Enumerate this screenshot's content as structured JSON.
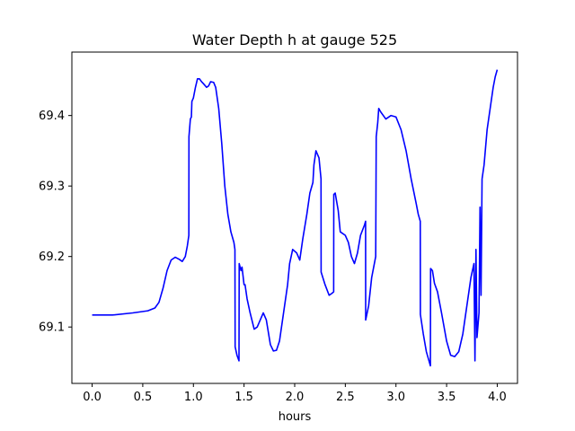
{
  "chart_data": {
    "type": "line",
    "title": "Water Depth h at gauge 525",
    "xlabel": "hours",
    "ylabel": "",
    "xlim": [
      -0.2,
      4.2
    ],
    "ylim": [
      69.02,
      69.49
    ],
    "xticks": [
      0.0,
      0.5,
      1.0,
      1.5,
      2.0,
      2.5,
      3.0,
      3.5,
      4.0
    ],
    "xtick_labels": [
      "0.0",
      "0.5",
      "1.0",
      "1.5",
      "2.0",
      "2.5",
      "3.0",
      "3.5",
      "4.0"
    ],
    "yticks": [
      69.1,
      69.2,
      69.3,
      69.4
    ],
    "ytick_labels": [
      "69.1",
      "69.2",
      "69.3",
      "69.4"
    ],
    "grid": false,
    "series": [
      {
        "color": "#0000ff",
        "points": [
          [
            0.0,
            69.117
          ],
          [
            0.2,
            69.117
          ],
          [
            0.4,
            69.12
          ],
          [
            0.55,
            69.123
          ],
          [
            0.62,
            69.127
          ],
          [
            0.66,
            69.135
          ],
          [
            0.7,
            69.155
          ],
          [
            0.74,
            69.18
          ],
          [
            0.78,
            69.195
          ],
          [
            0.82,
            69.199
          ],
          [
            0.86,
            69.196
          ],
          [
            0.89,
            69.193
          ],
          [
            0.92,
            69.2
          ],
          [
            0.94,
            69.215
          ],
          [
            0.955,
            69.23
          ],
          [
            0.956,
            69.37
          ],
          [
            0.97,
            69.395
          ],
          [
            0.98,
            69.398
          ],
          [
            0.985,
            69.42
          ],
          [
            1.0,
            69.425
          ],
          [
            1.02,
            69.44
          ],
          [
            1.04,
            69.452
          ],
          [
            1.06,
            69.452
          ],
          [
            1.08,
            69.448
          ],
          [
            1.1,
            69.445
          ],
          [
            1.13,
            69.44
          ],
          [
            1.15,
            69.442
          ],
          [
            1.17,
            69.448
          ],
          [
            1.2,
            69.447
          ],
          [
            1.22,
            69.44
          ],
          [
            1.25,
            69.41
          ],
          [
            1.28,
            69.36
          ],
          [
            1.31,
            69.3
          ],
          [
            1.34,
            69.26
          ],
          [
            1.37,
            69.235
          ],
          [
            1.4,
            69.22
          ],
          [
            1.41,
            69.21
          ],
          [
            1.412,
            69.072
          ],
          [
            1.43,
            69.06
          ],
          [
            1.45,
            69.052
          ],
          [
            1.452,
            69.19
          ],
          [
            1.47,
            69.18
          ],
          [
            1.48,
            69.185
          ],
          [
            1.5,
            69.16
          ],
          [
            1.51,
            69.16
          ],
          [
            1.53,
            69.14
          ],
          [
            1.56,
            69.12
          ],
          [
            1.6,
            69.097
          ],
          [
            1.63,
            69.1
          ],
          [
            1.66,
            69.11
          ],
          [
            1.69,
            69.12
          ],
          [
            1.72,
            69.11
          ],
          [
            1.76,
            69.075
          ],
          [
            1.79,
            69.066
          ],
          [
            1.82,
            69.067
          ],
          [
            1.85,
            69.08
          ],
          [
            1.9,
            69.13
          ],
          [
            1.93,
            69.16
          ],
          [
            1.95,
            69.19
          ],
          [
            1.98,
            69.21
          ],
          [
            2.02,
            69.205
          ],
          [
            2.05,
            69.195
          ],
          [
            2.08,
            69.225
          ],
          [
            2.12,
            69.26
          ],
          [
            2.15,
            69.29
          ],
          [
            2.18,
            69.305
          ],
          [
            2.19,
            69.33
          ],
          [
            2.21,
            69.35
          ],
          [
            2.24,
            69.34
          ],
          [
            2.26,
            69.31
          ],
          [
            2.261,
            69.178
          ],
          [
            2.3,
            69.16
          ],
          [
            2.34,
            69.145
          ],
          [
            2.37,
            69.148
          ],
          [
            2.385,
            69.15
          ],
          [
            2.386,
            69.288
          ],
          [
            2.4,
            69.29
          ],
          [
            2.43,
            69.265
          ],
          [
            2.45,
            69.235
          ],
          [
            2.5,
            69.23
          ],
          [
            2.53,
            69.22
          ],
          [
            2.56,
            69.2
          ],
          [
            2.59,
            69.19
          ],
          [
            2.62,
            69.205
          ],
          [
            2.65,
            69.23
          ],
          [
            2.69,
            69.245
          ],
          [
            2.7,
            69.25
          ],
          [
            2.701,
            69.11
          ],
          [
            2.73,
            69.13
          ],
          [
            2.76,
            69.17
          ],
          [
            2.8,
            69.2
          ],
          [
            2.805,
            69.37
          ],
          [
            2.82,
            69.39
          ],
          [
            2.83,
            69.41
          ],
          [
            2.85,
            69.405
          ],
          [
            2.9,
            69.395
          ],
          [
            2.95,
            69.4
          ],
          [
            3.0,
            69.398
          ],
          [
            3.05,
            69.38
          ],
          [
            3.1,
            69.35
          ],
          [
            3.15,
            69.31
          ],
          [
            3.2,
            69.275
          ],
          [
            3.22,
            69.26
          ],
          [
            3.24,
            69.25
          ],
          [
            3.241,
            69.118
          ],
          [
            3.27,
            69.09
          ],
          [
            3.3,
            69.065
          ],
          [
            3.33,
            69.05
          ],
          [
            3.34,
            69.045
          ],
          [
            3.342,
            69.183
          ],
          [
            3.36,
            69.18
          ],
          [
            3.38,
            69.162
          ],
          [
            3.41,
            69.15
          ],
          [
            3.45,
            69.12
          ],
          [
            3.5,
            69.08
          ],
          [
            3.54,
            69.06
          ],
          [
            3.58,
            69.058
          ],
          [
            3.62,
            69.065
          ],
          [
            3.66,
            69.09
          ],
          [
            3.7,
            69.13
          ],
          [
            3.74,
            69.17
          ],
          [
            3.77,
            69.19
          ],
          [
            3.78,
            69.052
          ],
          [
            3.79,
            69.21
          ],
          [
            3.8,
            69.085
          ],
          [
            3.82,
            69.12
          ],
          [
            3.83,
            69.27
          ],
          [
            3.84,
            69.145
          ],
          [
            3.85,
            69.31
          ],
          [
            3.87,
            69.33
          ],
          [
            3.9,
            69.38
          ],
          [
            3.93,
            69.41
          ],
          [
            3.96,
            69.44
          ],
          [
            3.98,
            69.455
          ],
          [
            4.0,
            69.465
          ]
        ]
      }
    ]
  }
}
